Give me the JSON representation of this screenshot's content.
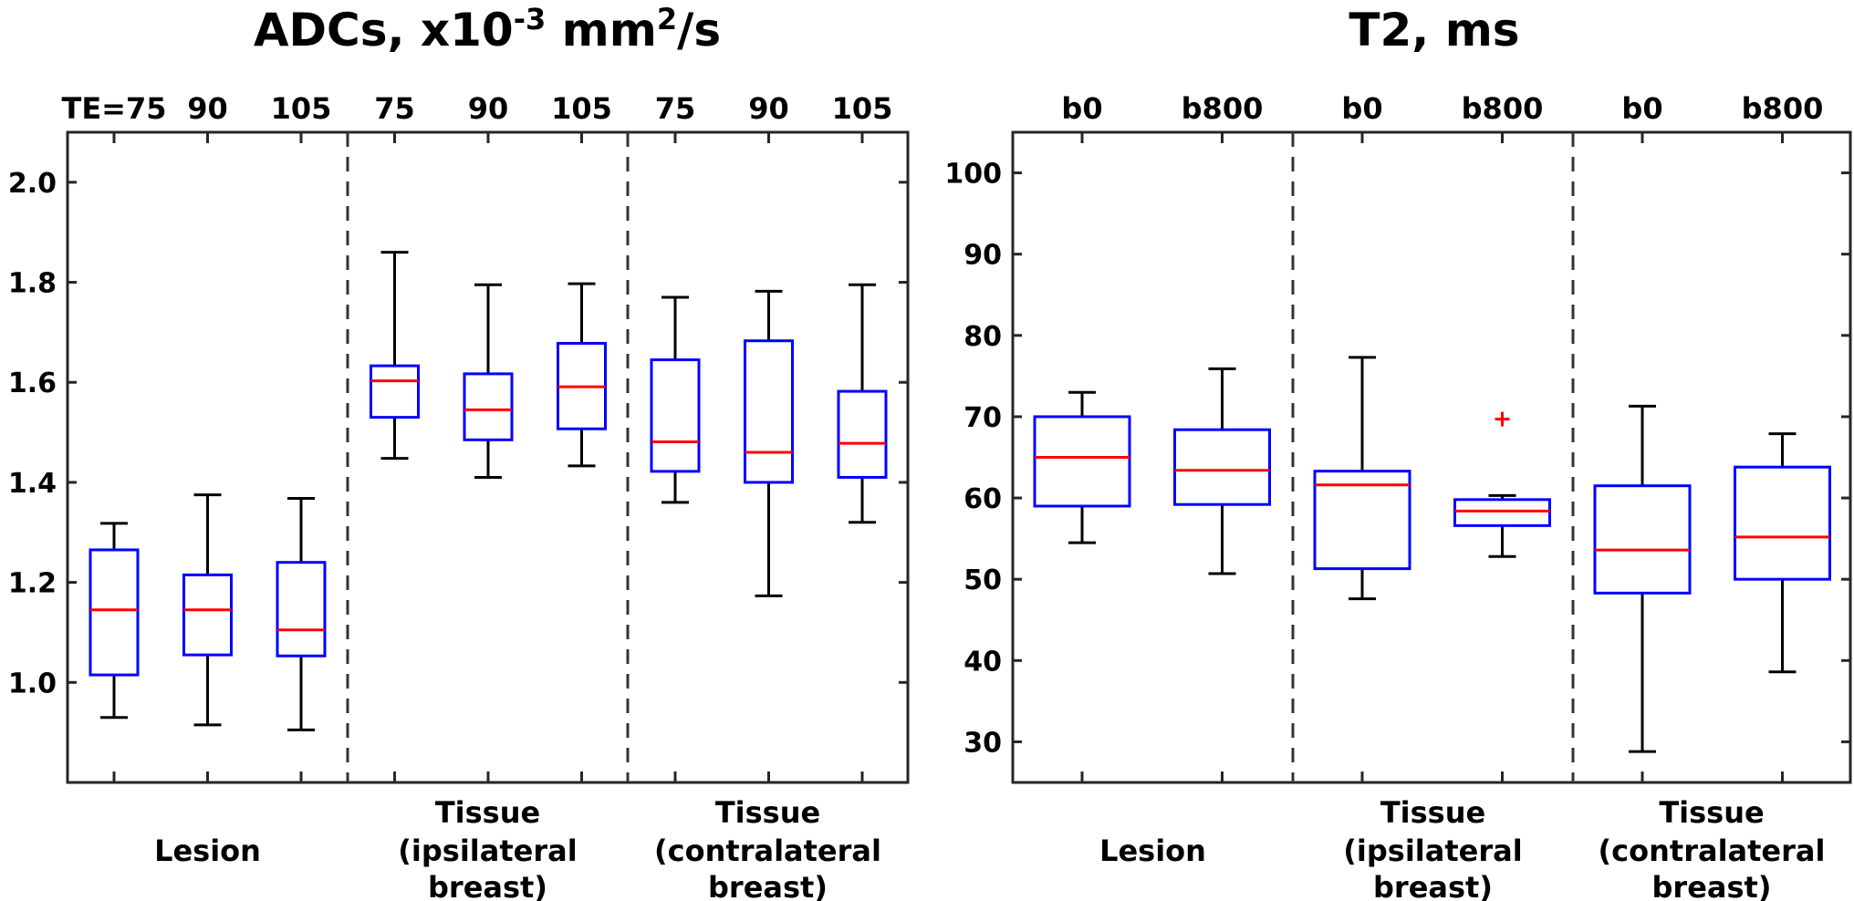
{
  "chart_data": [
    {
      "type": "box",
      "title": {
        "main": "ADCs, x10",
        "sup1": "-3",
        "mid": " mm",
        "sup2": "2",
        "tail": "/s"
      },
      "ylim": [
        0.8,
        2.1
      ],
      "yticks": [
        1.0,
        1.2,
        1.4,
        1.6,
        1.8,
        2.0
      ],
      "ytick_labels": [
        "1.0",
        "1.2",
        "1.4",
        "1.6",
        "1.8",
        "2.0"
      ],
      "categories": [
        "TE=75",
        "90",
        "105",
        "75",
        "90",
        "105",
        "75",
        "90",
        "105"
      ],
      "groups": [
        {
          "lines": [
            "Lesion"
          ]
        },
        {
          "lines": [
            "Tissue",
            "(ipsilateral",
            "breast)"
          ]
        },
        {
          "lines": [
            "Tissue",
            "(contralateral",
            "breast)"
          ]
        }
      ],
      "boxes": [
        {
          "whisker_low": 0.93,
          "q1": 1.015,
          "median": 1.145,
          "q3": 1.265,
          "whisker_high": 1.318,
          "outliers": []
        },
        {
          "whisker_low": 0.915,
          "q1": 1.055,
          "median": 1.145,
          "q3": 1.215,
          "whisker_high": 1.375,
          "outliers": []
        },
        {
          "whisker_low": 0.905,
          "q1": 1.053,
          "median": 1.105,
          "q3": 1.24,
          "whisker_high": 1.368,
          "outliers": []
        },
        {
          "whisker_low": 1.448,
          "q1": 1.53,
          "median": 1.603,
          "q3": 1.633,
          "whisker_high": 1.86,
          "outliers": []
        },
        {
          "whisker_low": 1.41,
          "q1": 1.485,
          "median": 1.545,
          "q3": 1.617,
          "whisker_high": 1.795,
          "outliers": []
        },
        {
          "whisker_low": 1.433,
          "q1": 1.507,
          "median": 1.591,
          "q3": 1.678,
          "whisker_high": 1.797,
          "outliers": []
        },
        {
          "whisker_low": 1.36,
          "q1": 1.422,
          "median": 1.481,
          "q3": 1.645,
          "whisker_high": 1.77,
          "outliers": []
        },
        {
          "whisker_low": 1.173,
          "q1": 1.4,
          "median": 1.46,
          "q3": 1.683,
          "whisker_high": 1.782,
          "outliers": []
        },
        {
          "whisker_low": 1.32,
          "q1": 1.41,
          "median": 1.478,
          "q3": 1.582,
          "whisker_high": 1.795,
          "outliers": []
        }
      ]
    },
    {
      "type": "box",
      "title": {
        "main": "T2, ms"
      },
      "ylim": [
        25,
        105
      ],
      "yticks": [
        30,
        40,
        50,
        60,
        70,
        80,
        90,
        100
      ],
      "ytick_labels": [
        "30",
        "40",
        "50",
        "60",
        "70",
        "80",
        "90",
        "100"
      ],
      "categories": [
        "b0",
        "b800",
        "b0",
        "b800",
        "b0",
        "b800"
      ],
      "groups": [
        {
          "lines": [
            "Lesion"
          ]
        },
        {
          "lines": [
            "Tissue",
            "(ipsilateral",
            "breast)"
          ]
        },
        {
          "lines": [
            "Tissue",
            "(contralateral",
            "breast)"
          ]
        }
      ],
      "boxes": [
        {
          "whisker_low": 54.5,
          "q1": 59.0,
          "median": 65.0,
          "q3": 70.0,
          "whisker_high": 73.0,
          "outliers": []
        },
        {
          "whisker_low": 50.7,
          "q1": 59.2,
          "median": 63.4,
          "q3": 68.4,
          "whisker_high": 75.9,
          "outliers": []
        },
        {
          "whisker_low": 47.6,
          "q1": 51.3,
          "median": 61.6,
          "q3": 63.3,
          "whisker_high": 77.3,
          "outliers": []
        },
        {
          "whisker_low": 52.8,
          "q1": 56.6,
          "median": 58.4,
          "q3": 59.8,
          "whisker_high": 60.3,
          "outliers": [
            69.7
          ]
        },
        {
          "whisker_low": 28.8,
          "q1": 48.3,
          "median": 53.6,
          "q3": 61.5,
          "whisker_high": 71.3,
          "outliers": []
        },
        {
          "whisker_low": 38.6,
          "q1": 50.0,
          "median": 55.2,
          "q3": 63.8,
          "whisker_high": 67.9,
          "outliers": []
        }
      ]
    }
  ],
  "colors": {
    "box": "#0000ff",
    "median": "#ff0000",
    "whisker": "#000000",
    "axes": "#262626",
    "divider": "#333333"
  }
}
